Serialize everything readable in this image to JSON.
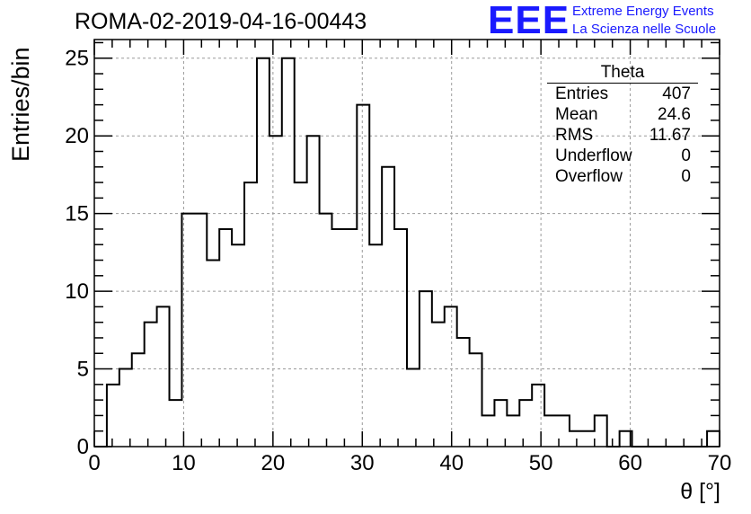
{
  "chart_data": {
    "type": "bar",
    "title": "ROMA-02-2019-04-16-00443",
    "xlabel": "θ [°]",
    "ylabel": "Entries/bin",
    "xlim": [
      0,
      70
    ],
    "ylim": [
      0,
      26.2
    ],
    "grid": true,
    "bin_width": 1.4,
    "bin_low_edges": [
      0,
      1.4,
      2.8,
      4.2,
      5.6,
      7.0,
      8.4,
      9.8,
      11.2,
      12.6,
      14.0,
      15.4,
      16.8,
      18.2,
      19.6,
      21.0,
      22.4,
      23.8,
      25.2,
      26.6,
      28.0,
      29.4,
      30.8,
      32.2,
      33.6,
      35.0,
      36.4,
      37.8,
      39.2,
      40.6,
      42.0,
      43.4,
      44.8,
      46.2,
      47.6,
      49.0,
      50.4,
      51.8,
      53.2,
      54.6,
      56.0,
      57.4,
      58.8,
      60.2,
      61.6,
      63.0,
      64.4,
      65.8,
      67.2,
      68.6
    ],
    "values": [
      0,
      4,
      5,
      6,
      8,
      9,
      3,
      15,
      15,
      12,
      14,
      13,
      17,
      25,
      20,
      25,
      17,
      20,
      15,
      14,
      14,
      22,
      13,
      18,
      14,
      5,
      10,
      8,
      9,
      7,
      6,
      2,
      3,
      2,
      3,
      4,
      2,
      2,
      1,
      1,
      2,
      0,
      1,
      0,
      0,
      0,
      0,
      0,
      0,
      1
    ],
    "x_ticks": [
      "0",
      "10",
      "20",
      "30",
      "40",
      "50",
      "60",
      "70"
    ],
    "y_ticks": [
      "0",
      "5",
      "10",
      "15",
      "20",
      "25"
    ]
  },
  "logo": {
    "mark": "EEE",
    "line1": "Extreme Energy Events",
    "line2": "La Scienza nelle Scuole"
  },
  "stats": {
    "title": "Theta",
    "rows": [
      {
        "label": "Entries",
        "value": "407"
      },
      {
        "label": "Mean",
        "value": "24.6"
      },
      {
        "label": "RMS",
        "value": "11.67"
      },
      {
        "label": "Underflow",
        "value": "0"
      },
      {
        "label": "Overflow",
        "value": "0"
      }
    ]
  },
  "colors": {
    "histogram": "#000000",
    "grid": "#9a9a9a",
    "logo": "#1a1aff"
  }
}
